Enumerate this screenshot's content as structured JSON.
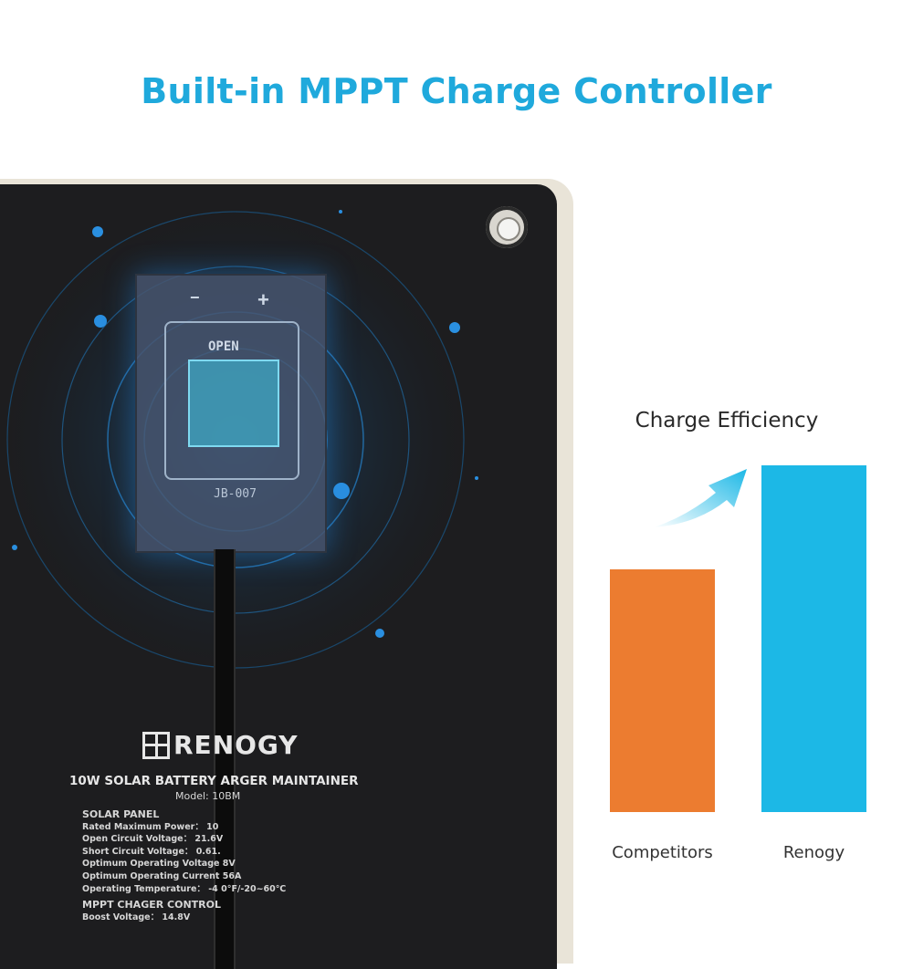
{
  "headline": "Built-in MPPT Charge Controller",
  "panel": {
    "brand": "RENOGY",
    "product_title": "10W SOLAR BATTERY    ARGER MAINTAINER",
    "model": "Model:  10BM",
    "junction_box": {
      "open_label": "OPEN",
      "code": "JB-007",
      "minus": "−",
      "plus": "+"
    },
    "specs": {
      "section1": "SOLAR PANEL",
      "items1": [
        "Rated Maximum Power： 10",
        "Open Circuit Voltage： 21.6V",
        "Short Circuit Voltage： 0.61.",
        "Optimum Operating Voltage   8V",
        "Optimum Operating Current   56A",
        "Operating Temperature： -4   0°F/-20~60℃"
      ],
      "section2": "MPPT CHAGER CONTROL",
      "items2": [
        "Boost Voltage： 14.8V"
      ]
    }
  },
  "colors": {
    "accent": "#1fa9dc",
    "competitors": "#ec7c30",
    "renogy": "#1cb8e6"
  },
  "chart_data": {
    "type": "bar",
    "title": "Charge Efficiency",
    "categories": [
      "Competitors",
      "Renogy"
    ],
    "values": [
      0.7,
      1.0
    ],
    "colors": [
      "#ec7c30",
      "#1cb8e6"
    ]
  }
}
